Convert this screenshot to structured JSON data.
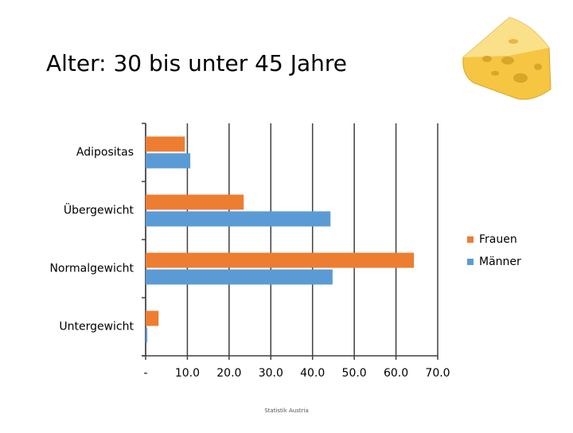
{
  "chart_data": {
    "type": "hbar",
    "title": "Alter: 30 bis unter 45 Jahre",
    "categories": [
      "Adipositas",
      "Übergewicht",
      "Normalgewicht",
      "Untergewicht"
    ],
    "series": [
      {
        "name": "Frauen",
        "color": "#ed7d31",
        "values": [
          9.4,
          23.5,
          64.3,
          3.1
        ]
      },
      {
        "name": "Männer",
        "color": "#5b9bd5",
        "values": [
          10.7,
          44.3,
          44.8,
          0.4
        ]
      }
    ],
    "xlim": [
      0,
      70
    ],
    "xticks": [
      {
        "value": 0,
        "label": "-"
      },
      {
        "value": 10,
        "label": "10.0"
      },
      {
        "value": 20,
        "label": "20.0"
      },
      {
        "value": 30,
        "label": "30.0"
      },
      {
        "value": 40,
        "label": "40.0"
      },
      {
        "value": 50,
        "label": "50.0"
      },
      {
        "value": 60,
        "label": "60.0"
      },
      {
        "value": 70,
        "label": "70.0"
      }
    ],
    "grid": true,
    "legend": "right",
    "source": "Statistik Austria"
  }
}
